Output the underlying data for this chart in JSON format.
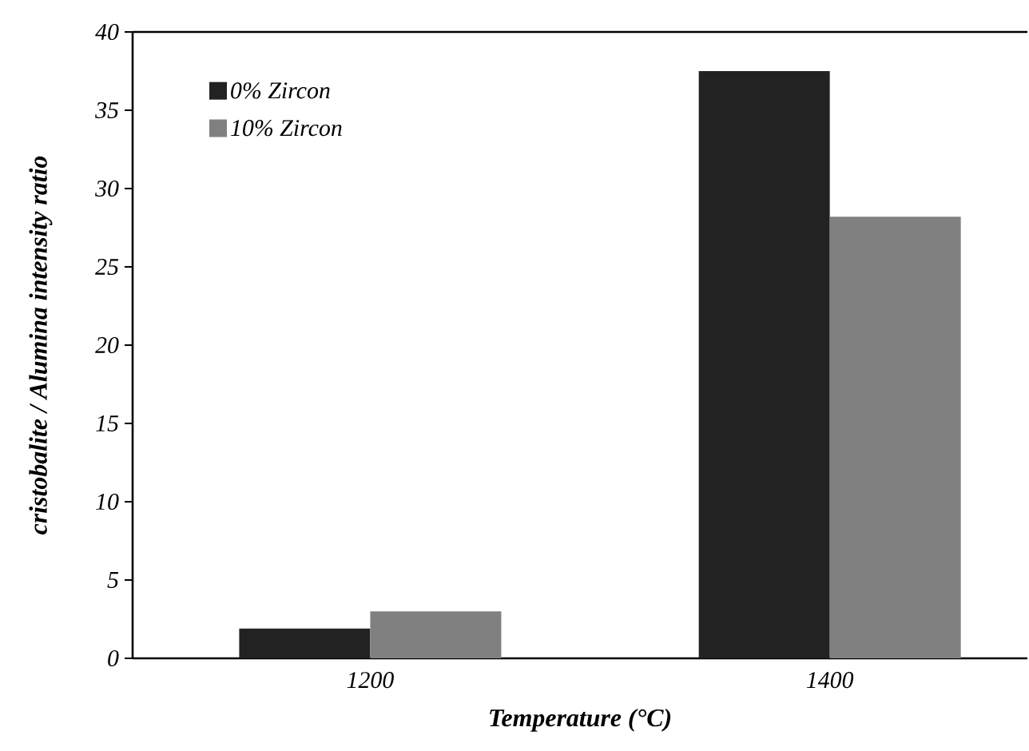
{
  "chart_data": {
    "type": "bar",
    "xlabel": "Temperature (°C)",
    "ylabel": "cristobalite / Alumina intensity ratio",
    "categories": [
      "1200",
      "1400"
    ],
    "series": [
      {
        "name": "0% Zircon",
        "color": "#222222",
        "values": [
          1.9,
          37.5
        ]
      },
      {
        "name": "10% Zircon",
        "color": "#808080",
        "values": [
          3.0,
          28.2
        ]
      }
    ],
    "ylim": [
      0,
      40
    ],
    "yticks": [
      0,
      5,
      10,
      15,
      20,
      25,
      30,
      35,
      40
    ],
    "legend": "top left",
    "grid": false
  }
}
